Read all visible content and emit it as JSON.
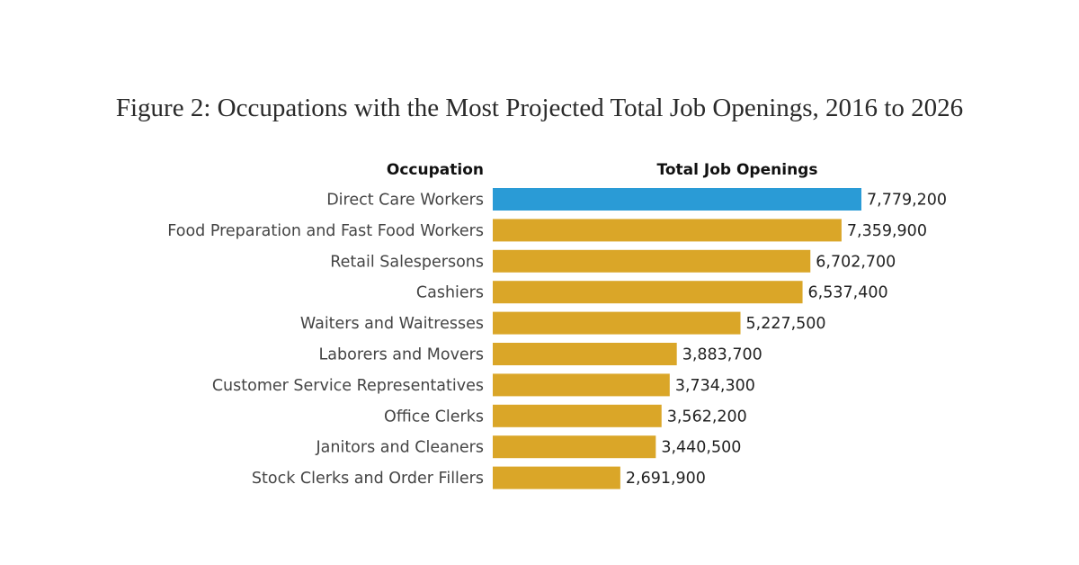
{
  "chart_data": {
    "type": "bar",
    "orientation": "horizontal",
    "title": "Figure 2: Occupations with the Most Projected Total Job Openings, 2016 to 2026",
    "category_header": "Occupation",
    "value_header": "Total Job Openings",
    "categories": [
      "Direct Care Workers",
      "Food Preparation and Fast Food Workers",
      "Retail Salespersons",
      "Cashiers",
      "Waiters and Waitresses",
      "Laborers and Movers",
      "Customer Service Representatives",
      "Office Clerks",
      "Janitors and Cleaners",
      "Stock Clerks and Order Fillers"
    ],
    "values": [
      7779200,
      7359900,
      6702700,
      6537400,
      5227500,
      3883700,
      3734300,
      3562200,
      3440500,
      2691900
    ],
    "value_labels": [
      "7,779,200",
      "7,359,900",
      "6,702,700",
      "6,537,400",
      "5,227,500",
      "3,883,700",
      "3,734,300",
      "3,562,200",
      "3,440,500",
      "2,691,900"
    ],
    "highlight_index": 0,
    "colors": {
      "highlight": "#2a9bd6",
      "default": "#daa628"
    },
    "grid": false,
    "legend": "none"
  }
}
